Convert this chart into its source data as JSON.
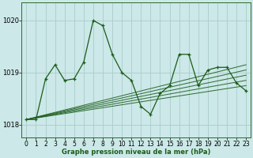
{
  "title": "Graphe pression niveau de la mer (hPa)",
  "background_color": "#cce8e8",
  "grid_color": "#aacccc",
  "line_color": "#1a5c1a",
  "xlim": [
    -0.5,
    23.5
  ],
  "ylim": [
    1017.75,
    1020.35
  ],
  "yticks": [
    1018,
    1019,
    1020
  ],
  "xticks": [
    0,
    1,
    2,
    3,
    4,
    5,
    6,
    7,
    8,
    9,
    10,
    11,
    12,
    13,
    14,
    15,
    16,
    17,
    18,
    19,
    20,
    21,
    22,
    23
  ],
  "trend_lines": [
    [
      [
        0,
        23
      ],
      [
        1018.1,
        1018.85
      ]
    ],
    [
      [
        0,
        23
      ],
      [
        1018.1,
        1018.95
      ]
    ],
    [
      [
        0,
        23
      ],
      [
        1018.1,
        1019.05
      ]
    ],
    [
      [
        0,
        23
      ],
      [
        1018.1,
        1019.15
      ]
    ],
    [
      [
        0,
        23
      ],
      [
        1018.1,
        1018.75
      ]
    ]
  ],
  "active_series": [
    1018.1,
    1018.1,
    1018.88,
    1019.15,
    1018.85,
    1018.88,
    1019.2,
    1020.0,
    1019.9,
    1019.35,
    1019.0,
    1018.85,
    1018.35,
    1018.2,
    1018.6,
    1018.75,
    1019.35,
    1019.35,
    1018.75,
    1019.05,
    1019.1,
    1019.1,
    1018.8,
    1018.65
  ],
  "tick_fontsize": 5.5,
  "label_fontsize": 6,
  "title_fontsize": 6
}
